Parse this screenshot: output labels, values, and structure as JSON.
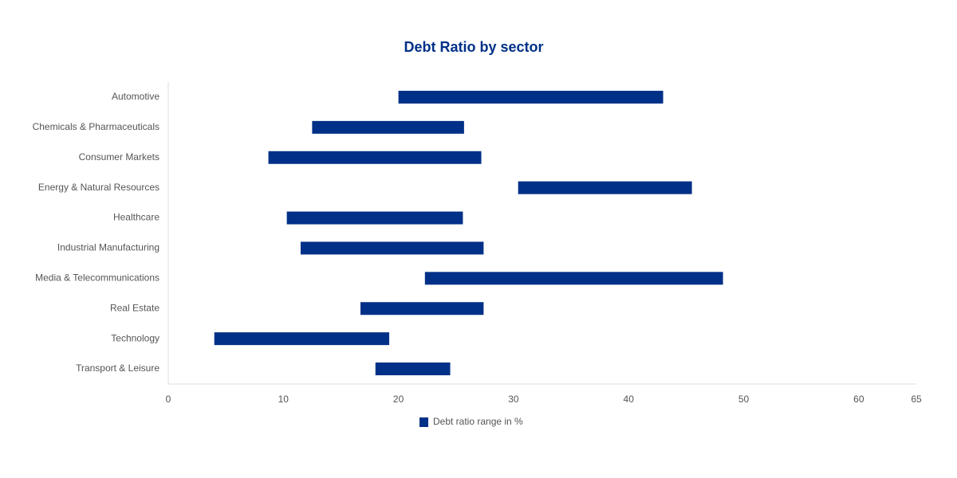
{
  "chart_data": {
    "type": "rangebar",
    "title": "Debt Ratio by sector",
    "categories": [
      "Automotive",
      "Chemicals & Pharmaceuticals",
      "Consumer Markets",
      "Energy & Natural Resources",
      "Healthcare",
      "Industrial Manufacturing",
      "Media & Telecommunications",
      "Real Estate",
      "Technology",
      "Transport & Leisure"
    ],
    "series": [
      {
        "name": "Debt ratio range in %",
        "color": "#003087",
        "values": [
          [
            20,
            43
          ],
          [
            12.5,
            25.7
          ],
          [
            8.7,
            27.2
          ],
          [
            30.4,
            45.5
          ],
          [
            10.3,
            25.6
          ],
          [
            11.5,
            27.4
          ],
          [
            22.3,
            48.2
          ],
          [
            16.7,
            27.4
          ],
          [
            4,
            19.2
          ],
          [
            18,
            24.5
          ]
        ]
      }
    ],
    "xlim": [
      0,
      65
    ],
    "xticks": [
      0,
      10,
      20,
      30,
      40,
      50,
      60,
      65
    ],
    "grid": false,
    "legend": "bottom"
  }
}
